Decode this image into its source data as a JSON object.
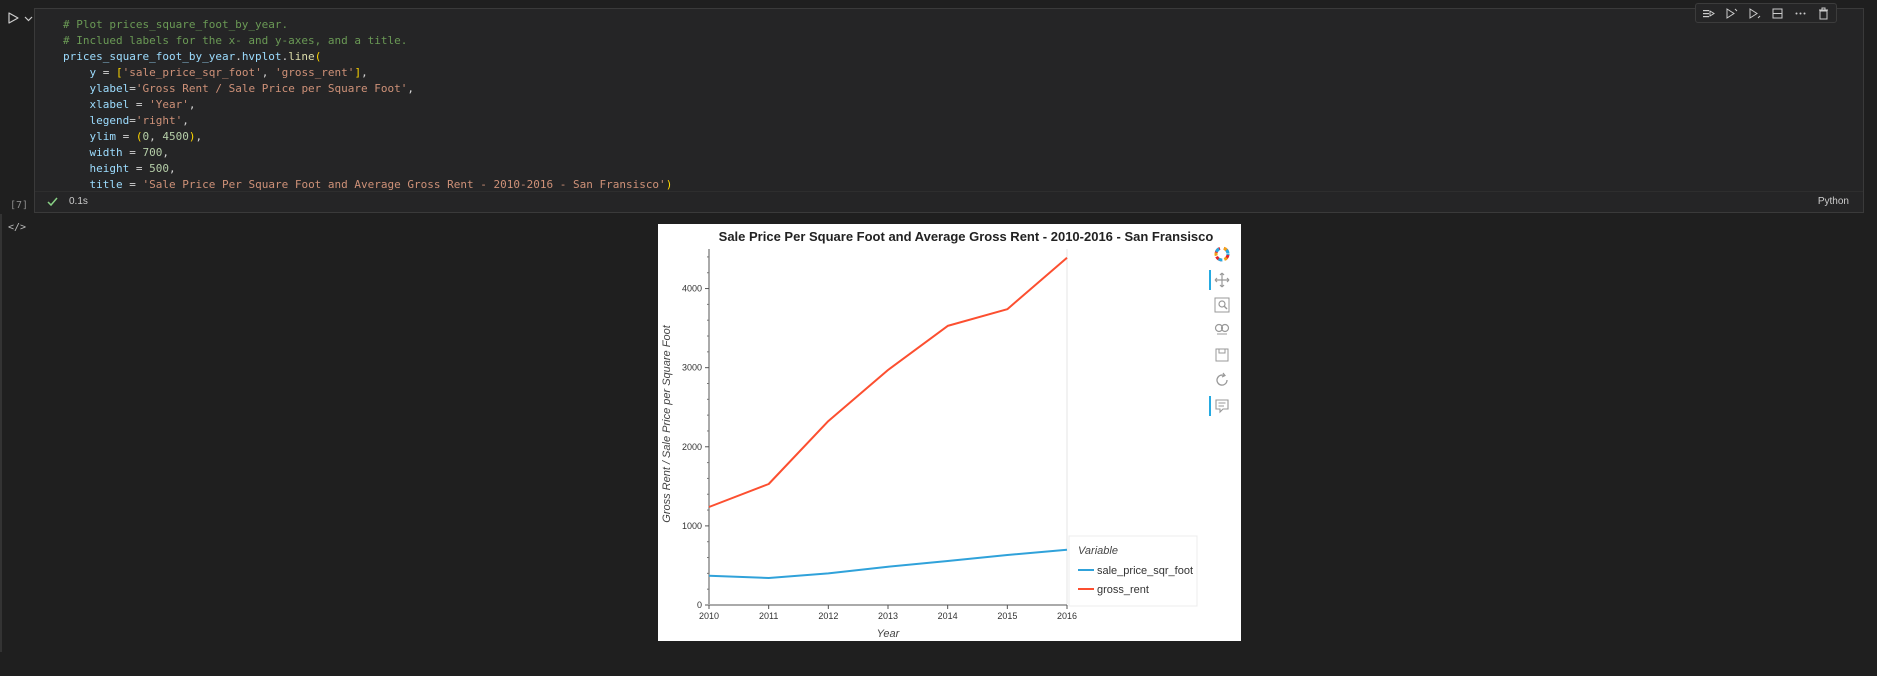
{
  "cell": {
    "code_lines": [
      [
        {
          "t": "cm",
          "v": "# Plot prices_square_foot_by_year."
        }
      ],
      [
        {
          "t": "cm",
          "v": "# Inclued labels for the x- and y-axes, and a title."
        }
      ],
      [
        {
          "t": "vr",
          "v": "prices_square_foot_by_year"
        },
        {
          "t": "",
          "v": "."
        },
        {
          "t": "vr",
          "v": "hvplot"
        },
        {
          "t": "",
          "v": "."
        },
        {
          "t": "fn",
          "v": "line"
        },
        {
          "t": "pn",
          "v": "("
        }
      ],
      [
        {
          "t": "",
          "v": "    "
        },
        {
          "t": "vr",
          "v": "y"
        },
        {
          "t": "",
          "v": " = "
        },
        {
          "t": "pn",
          "v": "["
        },
        {
          "t": "st",
          "v": "'sale_price_sqr_foot'"
        },
        {
          "t": "",
          "v": ", "
        },
        {
          "t": "st",
          "v": "'gross_rent'"
        },
        {
          "t": "pn",
          "v": "]"
        },
        {
          "t": "",
          "v": ","
        }
      ],
      [
        {
          "t": "",
          "v": "    "
        },
        {
          "t": "vr",
          "v": "ylabel"
        },
        {
          "t": "",
          "v": "="
        },
        {
          "t": "st",
          "v": "'Gross Rent / Sale Price per Square Foot'"
        },
        {
          "t": "",
          "v": ","
        }
      ],
      [
        {
          "t": "",
          "v": "    "
        },
        {
          "t": "vr",
          "v": "xlabel"
        },
        {
          "t": "",
          "v": " = "
        },
        {
          "t": "st",
          "v": "'Year'"
        },
        {
          "t": "",
          "v": ","
        }
      ],
      [
        {
          "t": "",
          "v": "    "
        },
        {
          "t": "vr",
          "v": "legend"
        },
        {
          "t": "",
          "v": "="
        },
        {
          "t": "st",
          "v": "'right'"
        },
        {
          "t": "",
          "v": ","
        }
      ],
      [
        {
          "t": "",
          "v": "    "
        },
        {
          "t": "vr",
          "v": "ylim"
        },
        {
          "t": "",
          "v": " = "
        },
        {
          "t": "pn",
          "v": "("
        },
        {
          "t": "nm",
          "v": "0"
        },
        {
          "t": "",
          "v": ", "
        },
        {
          "t": "nm",
          "v": "4500"
        },
        {
          "t": "pn",
          "v": ")"
        },
        {
          "t": "",
          "v": ","
        }
      ],
      [
        {
          "t": "",
          "v": "    "
        },
        {
          "t": "vr",
          "v": "width"
        },
        {
          "t": "",
          "v": " = "
        },
        {
          "t": "nm",
          "v": "700"
        },
        {
          "t": "",
          "v": ","
        }
      ],
      [
        {
          "t": "",
          "v": "    "
        },
        {
          "t": "vr",
          "v": "height"
        },
        {
          "t": "",
          "v": " = "
        },
        {
          "t": "nm",
          "v": "500"
        },
        {
          "t": "",
          "v": ","
        }
      ],
      [
        {
          "t": "",
          "v": "    "
        },
        {
          "t": "vr",
          "v": "title"
        },
        {
          "t": "",
          "v": " = "
        },
        {
          "t": "st",
          "v": "'Sale Price Per Square Foot and Average Gross Rent - 2010-2016 - San Fransisco'"
        },
        {
          "t": "pn",
          "v": ")"
        }
      ]
    ],
    "exec_count": "[7]",
    "status_time": "0.1s",
    "kernel_language": "Python",
    "output_toggle": "</>",
    "toolbar_icons": [
      "run-by-line-icon",
      "execute-above-icon",
      "execute-below-icon",
      "split-cell-icon",
      "more-actions-icon",
      "delete-cell-icon"
    ]
  },
  "chart_data": {
    "type": "line",
    "title": "Sale Price Per Square Foot and Average Gross Rent - 2010-2016 - San Fransisco",
    "xlabel": "Year",
    "ylabel": "Gross Rent / Sale Price per Square Foot",
    "x": [
      2010,
      2011,
      2012,
      2013,
      2014,
      2015,
      2016
    ],
    "xlim": [
      2010,
      2016
    ],
    "ylim": [
      0,
      4500
    ],
    "yticks": [
      0,
      1000,
      2000,
      3000,
      4000
    ],
    "grid": false,
    "legend_position": "right",
    "legend_title": "Variable",
    "series": [
      {
        "name": "sale_price_sqr_foot",
        "color": "#30a2da",
        "values": [
          369.3,
          341.9,
          399.4,
          483.6,
          556.3,
          632.5,
          697.6
        ]
      },
      {
        "name": "gross_rent",
        "color": "#fc4f30",
        "values": [
          1239,
          1530,
          2324,
          2971,
          3528,
          3739,
          4390
        ]
      }
    ]
  },
  "bokeh_toolbar": {
    "tools": [
      "bokeh-logo-icon",
      "pan-icon",
      "box-zoom-icon",
      "wheel-zoom-icon",
      "save-icon",
      "reset-icon",
      "hover-icon"
    ],
    "accent": "#26aae1"
  }
}
